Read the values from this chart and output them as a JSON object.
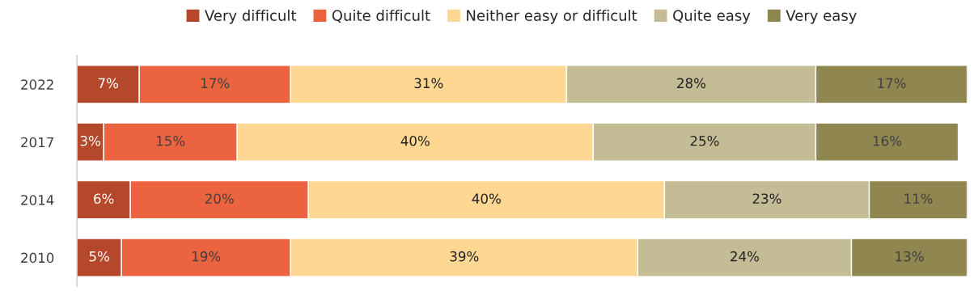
{
  "chart_data": {
    "type": "bar",
    "orientation": "horizontal",
    "stacked": true,
    "legend": "top",
    "tick_labels": "y",
    "grid": false,
    "categories": [
      "2022",
      "2017",
      "2014",
      "2010"
    ],
    "series": [
      {
        "name": "Very difficult",
        "color": "#b5472a",
        "values": [
          7,
          3,
          6,
          5
        ],
        "value_labels": [
          "7%",
          "3%",
          "6%",
          "5%"
        ]
      },
      {
        "name": "Quite difficult",
        "color": "#eb643f",
        "values": [
          17,
          15,
          20,
          19
        ],
        "value_labels": [
          "17%",
          "15%",
          "20%",
          "19%"
        ]
      },
      {
        "name": "Neither easy or difficult",
        "color": "#fed793",
        "values": [
          31,
          40,
          40,
          39
        ],
        "value_labels": [
          "31%",
          "40%",
          "40%",
          "39%"
        ]
      },
      {
        "name": "Quite easy",
        "color": "#c4bc95",
        "values": [
          28,
          25,
          23,
          24
        ],
        "value_labels": [
          "28%",
          "25%",
          "23%",
          "24%"
        ]
      },
      {
        "name": "Very easy",
        "color": "#8f8650",
        "values": [
          17,
          16,
          11,
          13
        ],
        "value_labels": [
          "17%",
          "16%",
          "11%",
          "13%"
        ]
      }
    ]
  }
}
